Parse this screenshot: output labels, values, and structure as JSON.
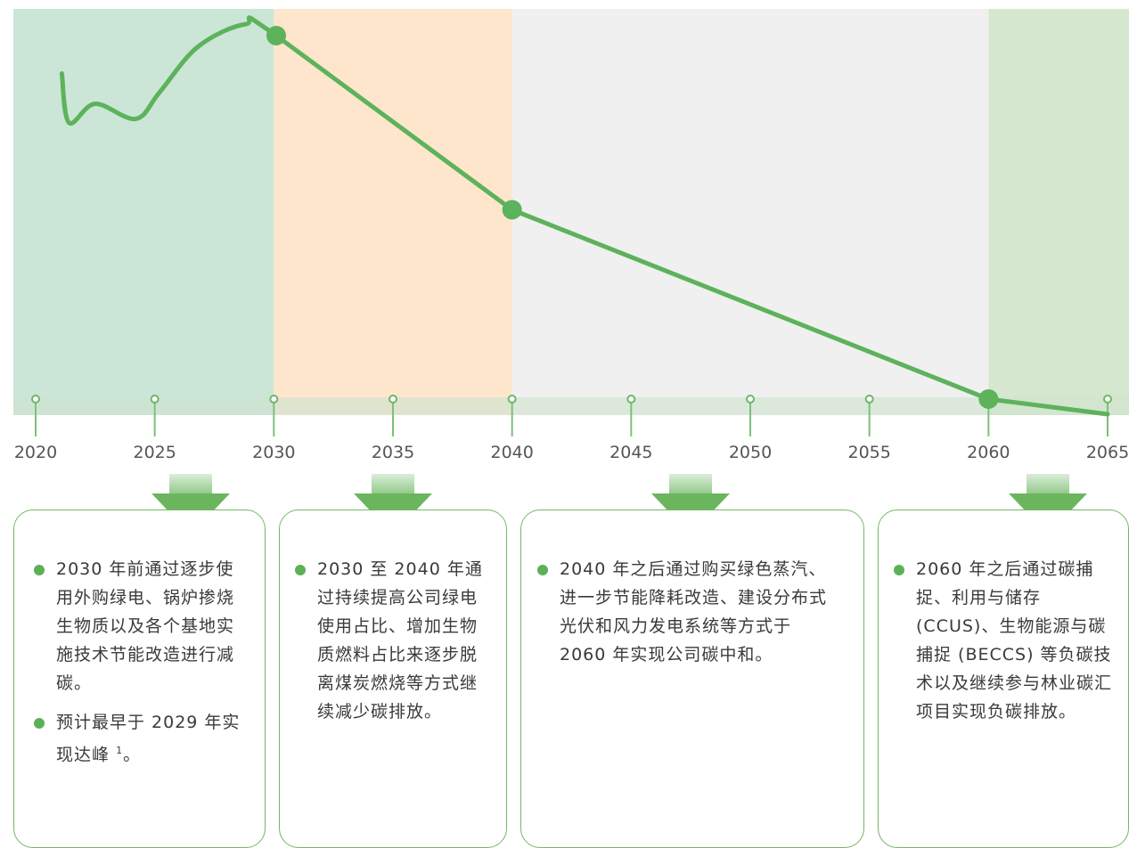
{
  "chart_data": {
    "type": "line",
    "x_ticks": [
      2020,
      2025,
      2030,
      2035,
      2040,
      2045,
      2050,
      2055,
      2060,
      2065
    ],
    "xlim": [
      2020,
      2065
    ],
    "phases": [
      {
        "from": 2020,
        "to": 2030,
        "color": "#cbe6d6"
      },
      {
        "from": 2030,
        "to": 2040,
        "color": "#fde6cc"
      },
      {
        "from": 2040,
        "to": 2060,
        "color": "#f0f0f0"
      },
      {
        "from": 2060,
        "to": 2065,
        "color": "#d5e8cf"
      }
    ],
    "series": [
      {
        "values": [
          {
            "x": 2021.1,
            "y": 0.86
          },
          {
            "x": 2021.4,
            "y": 0.73
          },
          {
            "x": 2022.5,
            "y": 0.78
          },
          {
            "x": 2024.2,
            "y": 0.74
          },
          {
            "x": 2025.2,
            "y": 0.81
          },
          {
            "x": 2026.8,
            "y": 0.93
          },
          {
            "x": 2028.8,
            "y": 0.99
          },
          {
            "x": 2030.1,
            "y": 0.96
          },
          {
            "x": 2040.0,
            "y": 0.5
          },
          {
            "x": 2060.0,
            "y": 0.0
          },
          {
            "x": 2065.0,
            "y": -0.04
          }
        ]
      }
    ],
    "markers": [
      2030.1,
      2040.0,
      2060.0
    ],
    "line_color": "#5db25c"
  },
  "boxes": [
    {
      "arrow_year": 2026.5,
      "items": [
        "2030 年前通过逐步使用外购绿电、锅炉掺烧生物质以及各个基地实施技术节能改造进行减碳。",
        "预计最早于 2029 年实现达峰"
      ],
      "footnote": "1",
      "footnote_end": "。"
    },
    {
      "arrow_year": 2035,
      "items": [
        "2030 至 2040 年通过持续提高公司绿电使用占比、增加生物质燃料占比来逐步脱离煤炭燃烧等方式继续减少碳排放。"
      ]
    },
    {
      "arrow_year": 2047.5,
      "items": [
        "2040 年之后通过购买绿色蒸汽、进一步节能降耗改造、建设分布式光伏和风力发电系统等方式于 2060 年实现公司碳中和。"
      ]
    },
    {
      "arrow_year": 2062.5,
      "items": [
        "2060 年之后通过碳捕捉、利用与储存 (CCUS)、生物能源与碳捕捉 (BECCS) 等负碳技术以及继续参与林业碳汇项目实现负碳排放。"
      ]
    }
  ]
}
